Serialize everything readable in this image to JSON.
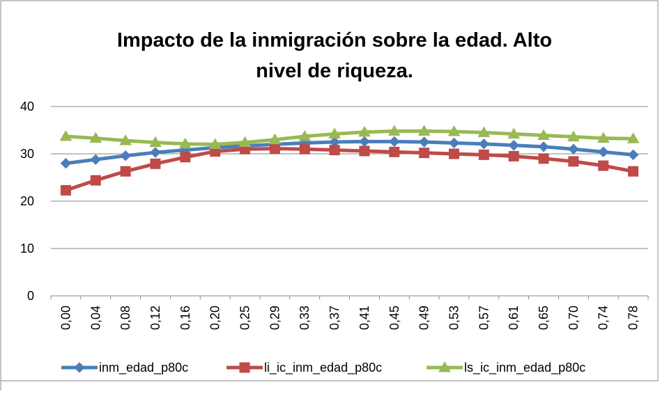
{
  "chart_data": {
    "type": "line",
    "title": [
      "Impacto de la inmigración sobre la edad.  Alto",
      "nivel de riqueza."
    ],
    "categories": [
      "0,00",
      "0,04",
      "0,08",
      "0,12",
      "0,16",
      "0,20",
      "0,25",
      "0,29",
      "0,33",
      "0,37",
      "0,41",
      "0,45",
      "0,49",
      "0,53",
      "0,57",
      "0,61",
      "0,65",
      "0,70",
      "0,74",
      "0,78"
    ],
    "series": [
      {
        "name": "inm_edad_p80c",
        "color": "#4a7ebb",
        "marker": "diamond",
        "values": [
          28.0,
          28.8,
          29.6,
          30.3,
          30.8,
          31.3,
          31.7,
          32.0,
          32.3,
          32.5,
          32.6,
          32.6,
          32.5,
          32.3,
          32.1,
          31.8,
          31.5,
          31.0,
          30.4,
          29.8
        ]
      },
      {
        "name": "li_ic_inm_edad_p80c",
        "color": "#be4b48",
        "marker": "square",
        "values": [
          22.3,
          24.4,
          26.3,
          27.9,
          29.3,
          30.5,
          31.0,
          31.1,
          31.0,
          30.8,
          30.6,
          30.4,
          30.2,
          30.0,
          29.8,
          29.5,
          29.0,
          28.4,
          27.5,
          26.3
        ]
      },
      {
        "name": "ls_ic_inm_edad_p80c",
        "color": "#98b954",
        "marker": "triangle",
        "values": [
          33.7,
          33.3,
          32.8,
          32.4,
          32.1,
          32.0,
          32.4,
          33.0,
          33.7,
          34.2,
          34.6,
          34.8,
          34.8,
          34.7,
          34.5,
          34.2,
          33.9,
          33.6,
          33.3,
          33.2
        ]
      }
    ],
    "ylim": [
      0,
      40
    ],
    "yticks": [
      0,
      10,
      20,
      30,
      40
    ],
    "grid": true,
    "legend": "bottom"
  }
}
